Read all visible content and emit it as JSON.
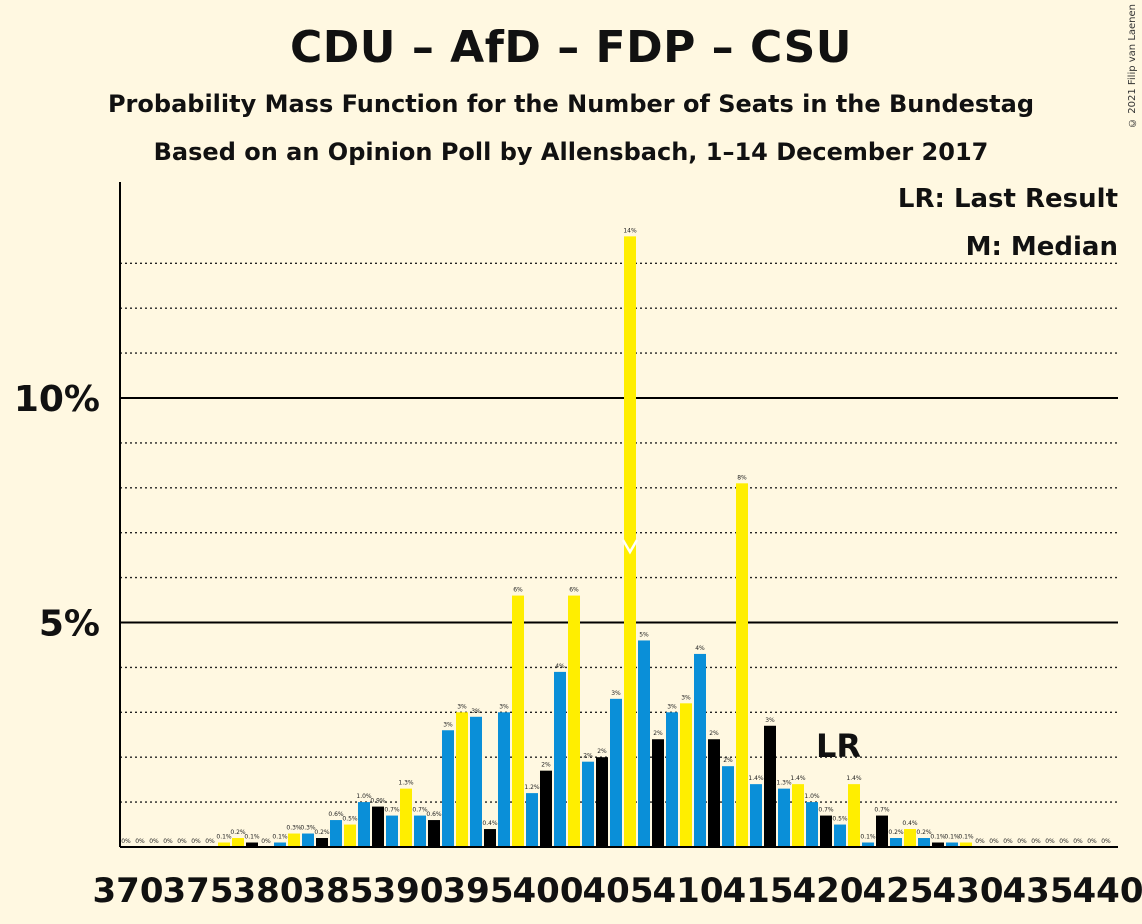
{
  "header": {
    "title": "CDU – AfD – FDP – CSU",
    "subtitle": "Probability Mass Function for the Number of Seats in the Bundestag",
    "subtitle2": "Based on an Opinion Poll by Allensbach, 1–14 December 2017",
    "copyright": "© 2021 Filip van Laenen"
  },
  "legend": {
    "last_result": "LR: Last Result",
    "median": "M: Median"
  },
  "colors": {
    "background": "#FFF8E1",
    "blue": "#0A8FD8",
    "yellow": "#FFEE00",
    "black": "#000000"
  },
  "chart_data": {
    "type": "bar",
    "x_range": [
      370,
      440
    ],
    "x_ticks": [
      370,
      375,
      380,
      385,
      390,
      395,
      400,
      405,
      410,
      415,
      420,
      425,
      430,
      435,
      440
    ],
    "y_range": [
      0,
      14.8
    ],
    "y_major_ticks": [
      {
        "value": 5,
        "label": "5%"
      },
      {
        "value": 10,
        "label": "10%"
      }
    ],
    "y_minor_ticks": [
      1,
      2,
      3,
      4,
      6,
      7,
      8,
      9,
      11,
      12,
      13
    ],
    "median_seat": 406,
    "median_marker": "M",
    "last_result_seat": 420,
    "last_result_marker": "LR",
    "bars": [
      {
        "x": 370,
        "value": 0,
        "label": "0%",
        "color": "blue"
      },
      {
        "x": 371,
        "value": 0,
        "label": "0%",
        "color": "yellow"
      },
      {
        "x": 372,
        "value": 0,
        "label": "0%",
        "color": "black"
      },
      {
        "x": 373,
        "value": 0,
        "label": "0%",
        "color": "blue"
      },
      {
        "x": 374,
        "value": 0,
        "label": "0%",
        "color": "yellow"
      },
      {
        "x": 375,
        "value": 0,
        "label": "0%",
        "color": "black"
      },
      {
        "x": 376,
        "value": 0,
        "label": "0%",
        "color": "blue"
      },
      {
        "x": 377,
        "value": 0.1,
        "label": "0.1%",
        "color": "yellow"
      },
      {
        "x": 378,
        "value": 0.2,
        "label": "0.2%",
        "color": "yellow"
      },
      {
        "x": 379,
        "value": 0.1,
        "label": "0.1%",
        "color": "black"
      },
      {
        "x": 380,
        "value": 0,
        "label": "0%",
        "color": "blue"
      },
      {
        "x": 381,
        "value": 0.1,
        "label": "0.1%",
        "color": "blue"
      },
      {
        "x": 382,
        "value": 0.3,
        "label": "0.3%",
        "color": "yellow"
      },
      {
        "x": 383,
        "value": 0.3,
        "label": "0.3%",
        "color": "blue"
      },
      {
        "x": 384,
        "value": 0.2,
        "label": "0.2%",
        "color": "black"
      },
      {
        "x": 385,
        "value": 0.6,
        "label": "0.6%",
        "color": "blue"
      },
      {
        "x": 386,
        "value": 0.5,
        "label": "0.5%",
        "color": "yellow"
      },
      {
        "x": 387,
        "value": 1.0,
        "label": "1.0%",
        "color": "blue"
      },
      {
        "x": 388,
        "value": 0.9,
        "label": "0.9%",
        "color": "black"
      },
      {
        "x": 389,
        "value": 0.7,
        "label": "0.7%",
        "color": "blue"
      },
      {
        "x": 390,
        "value": 1.3,
        "label": "1.3%",
        "color": "yellow"
      },
      {
        "x": 391,
        "value": 0.7,
        "label": "0.7%",
        "color": "blue"
      },
      {
        "x": 392,
        "value": 0.6,
        "label": "0.6%",
        "color": "black"
      },
      {
        "x": 393,
        "value": 2.6,
        "label": "3%",
        "color": "blue"
      },
      {
        "x": 394,
        "value": 3.0,
        "label": "3%",
        "color": "yellow"
      },
      {
        "x": 395,
        "value": 2.9,
        "label": "3%",
        "color": "blue"
      },
      {
        "x": 396,
        "value": 0.4,
        "label": "0.4%",
        "color": "black"
      },
      {
        "x": 397,
        "value": 3.0,
        "label": "3%",
        "color": "blue"
      },
      {
        "x": 398,
        "value": 5.6,
        "label": "6%",
        "color": "yellow"
      },
      {
        "x": 399,
        "value": 1.2,
        "label": "1.2%",
        "color": "blue"
      },
      {
        "x": 400,
        "value": 1.7,
        "label": "2%",
        "color": "black"
      },
      {
        "x": 401,
        "value": 3.9,
        "label": "4%",
        "color": "blue"
      },
      {
        "x": 402,
        "value": 5.6,
        "label": "6%",
        "color": "yellow"
      },
      {
        "x": 403,
        "value": 1.9,
        "label": "2%",
        "color": "blue"
      },
      {
        "x": 404,
        "value": 2.0,
        "label": "2%",
        "color": "black"
      },
      {
        "x": 405,
        "value": 3.3,
        "label": "3%",
        "color": "blue"
      },
      {
        "x": 406,
        "value": 13.6,
        "label": "14%",
        "color": "yellow"
      },
      {
        "x": 407,
        "value": 4.6,
        "label": "5%",
        "color": "blue"
      },
      {
        "x": 408,
        "value": 2.4,
        "label": "2%",
        "color": "black"
      },
      {
        "x": 409,
        "value": 3.0,
        "label": "3%",
        "color": "blue"
      },
      {
        "x": 410,
        "value": 3.2,
        "label": "3%",
        "color": "yellow"
      },
      {
        "x": 411,
        "value": 4.3,
        "label": "4%",
        "color": "blue"
      },
      {
        "x": 412,
        "value": 2.4,
        "label": "2%",
        "color": "black"
      },
      {
        "x": 413,
        "value": 1.8,
        "label": "2%",
        "color": "blue"
      },
      {
        "x": 414,
        "value": 8.1,
        "label": "8%",
        "color": "yellow"
      },
      {
        "x": 415,
        "value": 1.4,
        "label": "1.4%",
        "color": "blue"
      },
      {
        "x": 416,
        "value": 2.7,
        "label": "3%",
        "color": "black"
      },
      {
        "x": 417,
        "value": 1.3,
        "label": "1.3%",
        "color": "blue"
      },
      {
        "x": 418,
        "value": 1.4,
        "label": "1.4%",
        "color": "yellow"
      },
      {
        "x": 419,
        "value": 1.0,
        "label": "1.0%",
        "color": "blue"
      },
      {
        "x": 420,
        "value": 0.7,
        "label": "0.7%",
        "color": "black"
      },
      {
        "x": 421,
        "value": 0.5,
        "label": "0.5%",
        "color": "blue"
      },
      {
        "x": 422,
        "value": 1.4,
        "label": "1.4%",
        "color": "yellow"
      },
      {
        "x": 423,
        "value": 0.1,
        "label": "0.1%",
        "color": "blue"
      },
      {
        "x": 424,
        "value": 0.7,
        "label": "0.7%",
        "color": "black"
      },
      {
        "x": 425,
        "value": 0.2,
        "label": "0.2%",
        "color": "blue"
      },
      {
        "x": 426,
        "value": 0.4,
        "label": "0.4%",
        "color": "yellow"
      },
      {
        "x": 427,
        "value": 0.2,
        "label": "0.2%",
        "color": "blue"
      },
      {
        "x": 428,
        "value": 0.1,
        "label": "0.1%",
        "color": "black"
      },
      {
        "x": 429,
        "value": 0.1,
        "label": "0.1%",
        "color": "blue"
      },
      {
        "x": 430,
        "value": 0.1,
        "label": "0.1%",
        "color": "yellow"
      },
      {
        "x": 431,
        "value": 0,
        "label": "0%",
        "color": "blue"
      },
      {
        "x": 432,
        "value": 0,
        "label": "0%",
        "color": "black"
      },
      {
        "x": 433,
        "value": 0,
        "label": "0%",
        "color": "blue"
      },
      {
        "x": 434,
        "value": 0,
        "label": "0%",
        "color": "yellow"
      },
      {
        "x": 435,
        "value": 0,
        "label": "0%",
        "color": "blue"
      },
      {
        "x": 436,
        "value": 0,
        "label": "0%",
        "color": "black"
      },
      {
        "x": 437,
        "value": 0,
        "label": "0%",
        "color": "blue"
      },
      {
        "x": 438,
        "value": 0,
        "label": "0%",
        "color": "yellow"
      },
      {
        "x": 439,
        "value": 0,
        "label": "0%",
        "color": "blue"
      },
      {
        "x": 440,
        "value": 0,
        "label": "0%",
        "color": "black"
      }
    ]
  }
}
